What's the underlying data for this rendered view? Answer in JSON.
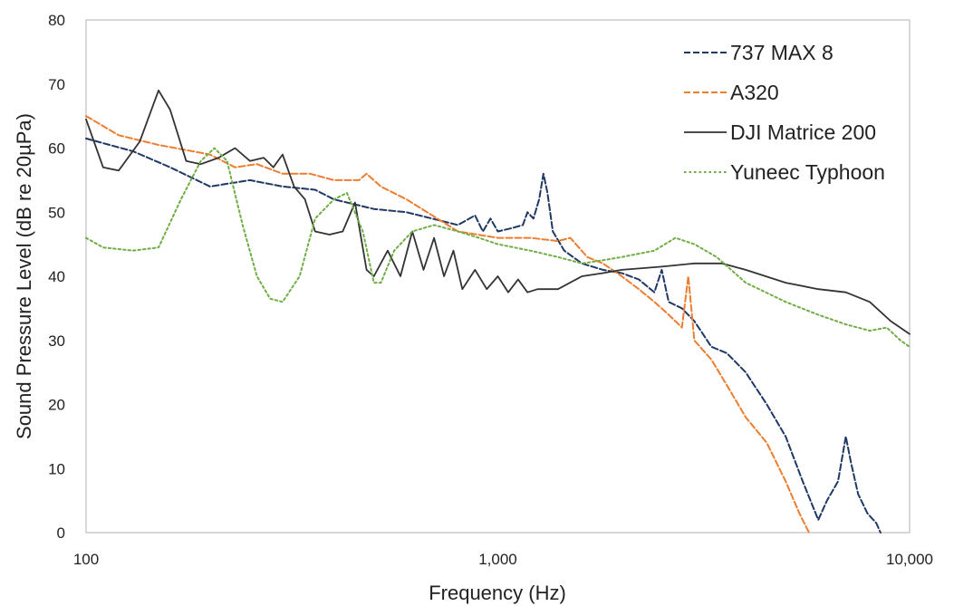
{
  "chart_data": {
    "type": "line",
    "xlabel": "Frequency (Hz)",
    "ylabel": "Sound Pressure Level (dB re 20µPa)",
    "x_scale": "log",
    "xlim": [
      100,
      10000
    ],
    "ylim": [
      0,
      80
    ],
    "x_ticks": [
      100,
      1000,
      10000
    ],
    "x_tick_labels": [
      "100",
      "1,000",
      "10,000"
    ],
    "y_ticks": [
      0,
      10,
      20,
      30,
      40,
      50,
      60,
      70,
      80
    ],
    "grid": false,
    "legend_position": "top-right",
    "series": [
      {
        "name": "737 MAX 8",
        "color": "#1f3864",
        "dash": "dashed",
        "points": [
          [
            100,
            61.5
          ],
          [
            130,
            59.5
          ],
          [
            160,
            57
          ],
          [
            200,
            54
          ],
          [
            250,
            55
          ],
          [
            300,
            54
          ],
          [
            360,
            53.5
          ],
          [
            400,
            52
          ],
          [
            500,
            50.5
          ],
          [
            600,
            50
          ],
          [
            800,
            48
          ],
          [
            880,
            49.5
          ],
          [
            920,
            47
          ],
          [
            960,
            49
          ],
          [
            1000,
            47
          ],
          [
            1080,
            47.5
          ],
          [
            1150,
            48
          ],
          [
            1180,
            50
          ],
          [
            1220,
            49
          ],
          [
            1260,
            52
          ],
          [
            1290,
            56
          ],
          [
            1320,
            53
          ],
          [
            1360,
            47
          ],
          [
            1450,
            44
          ],
          [
            1600,
            42
          ],
          [
            1800,
            41
          ],
          [
            2000,
            40.5
          ],
          [
            2200,
            39.5
          ],
          [
            2400,
            37.5
          ],
          [
            2500,
            41
          ],
          [
            2600,
            36
          ],
          [
            2800,
            35
          ],
          [
            3000,
            33
          ],
          [
            3300,
            29
          ],
          [
            3600,
            28
          ],
          [
            4000,
            25
          ],
          [
            4500,
            20
          ],
          [
            5000,
            15
          ],
          [
            5500,
            8
          ],
          [
            6000,
            2
          ],
          [
            6300,
            5
          ],
          [
            6700,
            8
          ],
          [
            7000,
            15
          ],
          [
            7200,
            11
          ],
          [
            7500,
            6
          ],
          [
            7900,
            3
          ],
          [
            8300,
            1.5
          ],
          [
            8500,
            0
          ]
        ]
      },
      {
        "name": "A320",
        "color": "#ed7d31",
        "dash": "dashed",
        "points": [
          [
            100,
            65
          ],
          [
            120,
            62
          ],
          [
            150,
            60.5
          ],
          [
            200,
            59
          ],
          [
            230,
            57
          ],
          [
            260,
            57.5
          ],
          [
            300,
            56
          ],
          [
            350,
            56
          ],
          [
            400,
            55
          ],
          [
            460,
            55
          ],
          [
            480,
            56
          ],
          [
            520,
            54
          ],
          [
            600,
            52
          ],
          [
            800,
            47
          ],
          [
            1000,
            46
          ],
          [
            1200,
            46
          ],
          [
            1400,
            45.5
          ],
          [
            1500,
            46
          ],
          [
            1650,
            43
          ],
          [
            1800,
            42
          ],
          [
            2000,
            40
          ],
          [
            2200,
            38
          ],
          [
            2400,
            36
          ],
          [
            2600,
            34
          ],
          [
            2800,
            32
          ],
          [
            2900,
            40
          ],
          [
            3000,
            30
          ],
          [
            3300,
            27
          ],
          [
            3600,
            23
          ],
          [
            4000,
            18
          ],
          [
            4500,
            14
          ],
          [
            5000,
            8
          ],
          [
            5400,
            3
          ],
          [
            5700,
            0
          ]
        ]
      },
      {
        "name": "DJI Matrice 200",
        "color": "#333333",
        "dash": "solid",
        "points": [
          [
            100,
            64.5
          ],
          [
            110,
            57
          ],
          [
            120,
            56.5
          ],
          [
            135,
            61
          ],
          [
            150,
            69
          ],
          [
            160,
            66
          ],
          [
            175,
            58
          ],
          [
            190,
            57.5
          ],
          [
            210,
            58.5
          ],
          [
            230,
            60
          ],
          [
            250,
            58
          ],
          [
            270,
            58.5
          ],
          [
            285,
            57
          ],
          [
            300,
            59
          ],
          [
            320,
            54
          ],
          [
            340,
            52
          ],
          [
            360,
            47
          ],
          [
            390,
            46.5
          ],
          [
            420,
            47
          ],
          [
            450,
            51.5
          ],
          [
            480,
            41
          ],
          [
            500,
            40
          ],
          [
            540,
            44
          ],
          [
            580,
            40
          ],
          [
            620,
            47
          ],
          [
            660,
            41
          ],
          [
            700,
            46
          ],
          [
            740,
            40
          ],
          [
            780,
            44
          ],
          [
            820,
            38
          ],
          [
            880,
            41
          ],
          [
            940,
            38
          ],
          [
            1000,
            40
          ],
          [
            1060,
            37.5
          ],
          [
            1120,
            39.5
          ],
          [
            1180,
            37.5
          ],
          [
            1250,
            38
          ],
          [
            1400,
            38
          ],
          [
            1600,
            40
          ],
          [
            1800,
            40.5
          ],
          [
            2000,
            41
          ],
          [
            2500,
            41.5
          ],
          [
            3000,
            42
          ],
          [
            3500,
            42
          ],
          [
            4000,
            41
          ],
          [
            5000,
            39
          ],
          [
            6000,
            38
          ],
          [
            7000,
            37.5
          ],
          [
            8000,
            36
          ],
          [
            9000,
            33
          ],
          [
            10000,
            31
          ]
        ]
      },
      {
        "name": "Yuneec Typhoon",
        "color": "#70ad47",
        "dash": "dotted",
        "points": [
          [
            100,
            46
          ],
          [
            110,
            44.5
          ],
          [
            130,
            44
          ],
          [
            150,
            44.5
          ],
          [
            170,
            52
          ],
          [
            190,
            58
          ],
          [
            205,
            60
          ],
          [
            220,
            58
          ],
          [
            240,
            48
          ],
          [
            260,
            40
          ],
          [
            280,
            36.5
          ],
          [
            300,
            36
          ],
          [
            330,
            40
          ],
          [
            360,
            49
          ],
          [
            400,
            52
          ],
          [
            430,
            53
          ],
          [
            470,
            47
          ],
          [
            500,
            39
          ],
          [
            520,
            39
          ],
          [
            560,
            44
          ],
          [
            620,
            47
          ],
          [
            700,
            48
          ],
          [
            800,
            47
          ],
          [
            900,
            46
          ],
          [
            1000,
            45
          ],
          [
            1200,
            44
          ],
          [
            1400,
            43
          ],
          [
            1600,
            42
          ],
          [
            1800,
            42.5
          ],
          [
            2000,
            43
          ],
          [
            2400,
            44
          ],
          [
            2700,
            46
          ],
          [
            3000,
            45
          ],
          [
            3400,
            43
          ],
          [
            4000,
            39
          ],
          [
            5000,
            36
          ],
          [
            6000,
            34
          ],
          [
            7000,
            32.5
          ],
          [
            8000,
            31.5
          ],
          [
            8800,
            32
          ],
          [
            9500,
            30
          ],
          [
            10000,
            29
          ]
        ]
      }
    ]
  }
}
